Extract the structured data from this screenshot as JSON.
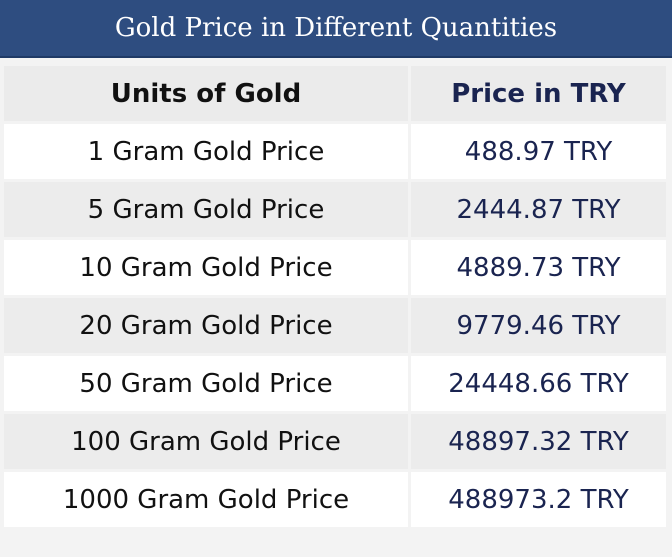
{
  "title": "Gold Price in Different Quantities",
  "table": {
    "headers": [
      "Units of Gold",
      "Price in TRY"
    ],
    "rows": [
      [
        "1 Gram Gold Price",
        "488.97 TRY"
      ],
      [
        "5 Gram Gold Price",
        "2444.87 TRY"
      ],
      [
        "10 Gram Gold Price",
        "4889.73 TRY"
      ],
      [
        "20 Gram Gold Price",
        "9779.46 TRY"
      ],
      [
        "50 Gram Gold Price",
        "24448.66 TRY"
      ],
      [
        "100 Gram Gold Price",
        "48897.32 TRY"
      ],
      [
        "1000 Gram Gold Price",
        "488973.2 TRY"
      ]
    ]
  },
  "colors": {
    "title_bg": "#2e4d80",
    "header_text": "#1a2450",
    "alt_row_bg": "#ececec"
  }
}
